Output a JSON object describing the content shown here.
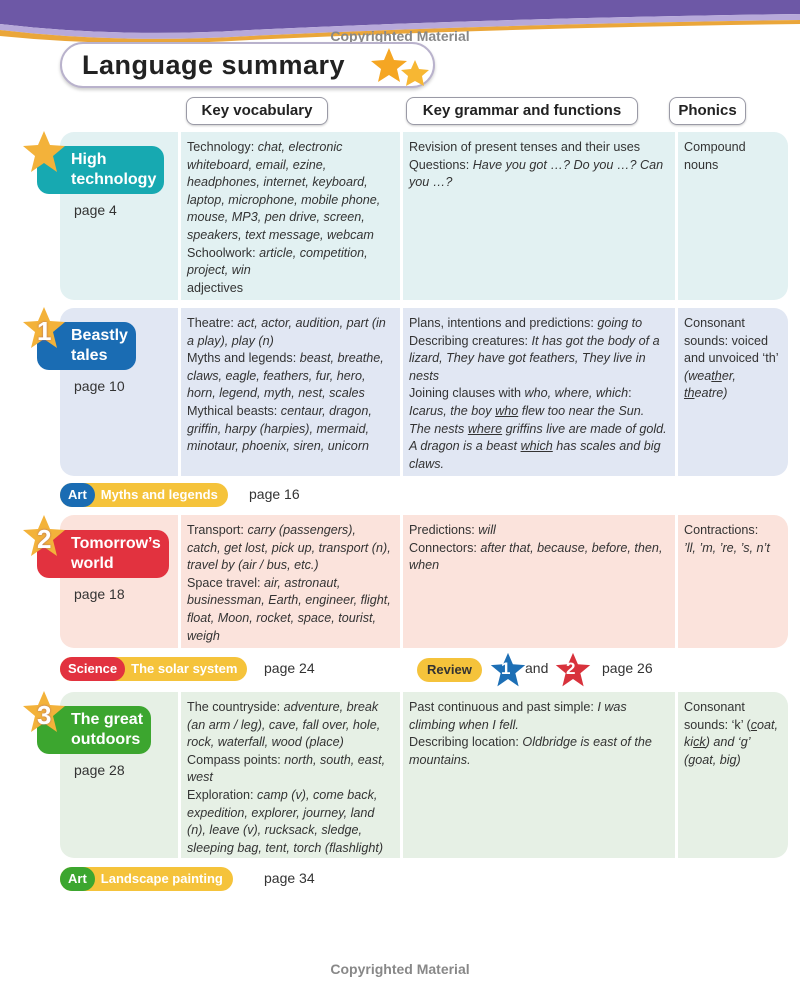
{
  "watermark": "Copyrighted Material",
  "title": "Language summary",
  "columns": {
    "vocab": "Key vocabulary",
    "grammar": "Key grammar and functions",
    "phonics": "Phonics"
  },
  "colors": {
    "teal": "#17a9b1",
    "blue": "#1a6cb3",
    "red": "#e2323f",
    "green": "#3ca62f",
    "gold": "#f5c33b"
  },
  "units": [
    {
      "number": "",
      "title_lines": [
        "High",
        "technology"
      ],
      "page": "page 4",
      "vocab": [
        [
          {
            "t": "Technology: "
          },
          {
            "t": "chat, electronic whiteboard, email, ezine, headphones, internet, keyboard, laptop, microphone, mobile phone, mouse, MP3, pen drive, screen, speakers, text message, webcam",
            "i": 1
          }
        ],
        [
          {
            "t": "Schoolwork: "
          },
          {
            "t": "article, competition, project, win",
            "i": 1
          }
        ],
        [
          {
            "t": "adjectives"
          }
        ]
      ],
      "grammar": [
        [
          {
            "t": "Revision of present tenses and their uses"
          }
        ],
        [
          {
            "t": "Questions: "
          },
          {
            "t": "Have you got …? Do you …? Can you …?",
            "i": 1
          }
        ]
      ],
      "phonics": [
        [
          {
            "t": "Compound nouns"
          }
        ]
      ]
    },
    {
      "number": "1",
      "title_lines": [
        "Beastly",
        "tales"
      ],
      "page": "page 10",
      "vocab": [
        [
          {
            "t": "Theatre: "
          },
          {
            "t": "act, actor, audition, part (in a play), play (n)",
            "i": 1
          }
        ],
        [
          {
            "t": "Myths and legends: "
          },
          {
            "t": "beast, breathe, claws, eagle, feathers, fur, hero, horn, legend, myth, nest, scales",
            "i": 1
          }
        ],
        [
          {
            "t": "Mythical beasts: "
          },
          {
            "t": "centaur, dragon, griffin, harpy (harpies), mermaid, minotaur, phoenix, siren, unicorn",
            "i": 1
          }
        ]
      ],
      "grammar": [
        [
          {
            "t": "Plans, intentions and predictions: "
          },
          {
            "t": "going to",
            "i": 1
          }
        ],
        [
          {
            "t": "Describing creatures: "
          },
          {
            "t": "It has got the body of a lizard, They have got feathers, They live in nests",
            "i": 1
          }
        ],
        [
          {
            "t": "Joining clauses with "
          },
          {
            "t": "who, where, which",
            "i": 1
          },
          {
            "t": ":"
          }
        ],
        [
          {
            "t": "Icarus, the boy ",
            "i": 1
          },
          {
            "t": "who",
            "i": 1,
            "u": 1
          },
          {
            "t": " flew too near the Sun.",
            "i": 1
          }
        ],
        [
          {
            "t": "The nests ",
            "i": 1
          },
          {
            "t": "where",
            "i": 1,
            "u": 1
          },
          {
            "t": " griffins live are made of gold.",
            "i": 1
          }
        ],
        [
          {
            "t": "A dragon is a beast ",
            "i": 1
          },
          {
            "t": "which",
            "i": 1,
            "u": 1
          },
          {
            "t": " has scales and big claws.",
            "i": 1
          }
        ]
      ],
      "phonics": [
        [
          {
            "t": "Consonant sounds: voiced and unvoiced ‘th’"
          }
        ],
        [
          {
            "t": "(wea",
            "i": 1
          },
          {
            "t": "th",
            "i": 1,
            "u": 1
          },
          {
            "t": "er, ",
            "i": 1
          },
          {
            "t": "th",
            "i": 1,
            "u": 1
          },
          {
            "t": "eatre)",
            "i": 1
          }
        ]
      ]
    },
    {
      "number": "2",
      "title_lines": [
        "Tomorrow’s",
        "world"
      ],
      "page": "page 18",
      "vocab": [
        [
          {
            "t": "Transport: "
          },
          {
            "t": "carry (passengers), catch, get lost, pick up, transport (n), travel by (air / bus, etc.)",
            "i": 1
          }
        ],
        [
          {
            "t": "Space travel: "
          },
          {
            "t": "air, astronaut, businessman, Earth, engineer, flight, float, Moon, rocket, space, tourist, weigh",
            "i": 1
          }
        ]
      ],
      "grammar": [
        [
          {
            "t": "Predictions: "
          },
          {
            "t": "will",
            "i": 1
          }
        ],
        [
          {
            "t": "Connectors: "
          },
          {
            "t": "after that, because, before, then, when",
            "i": 1
          }
        ]
      ],
      "phonics": [
        [
          {
            "t": "Contractions:"
          }
        ],
        [
          {
            "t": "’ll, ’m, ’re, ’s, n’t",
            "i": 1
          }
        ]
      ]
    },
    {
      "number": "3",
      "title_lines": [
        "The great",
        "outdoors"
      ],
      "page": "page 28",
      "vocab": [
        [
          {
            "t": "The countryside: "
          },
          {
            "t": "adventure, break (an arm / leg), cave, fall over, hole, rock, waterfall, wood (place)",
            "i": 1
          }
        ],
        [
          {
            "t": "Compass points: "
          },
          {
            "t": "north, south, east, west",
            "i": 1
          }
        ],
        [
          {
            "t": "Exploration: "
          },
          {
            "t": "camp (v), come back, expedition, explorer, journey, land (n), leave (v), rucksack, sledge, sleeping bag, tent, torch (flashlight)",
            "i": 1
          }
        ]
      ],
      "grammar": [
        [
          {
            "t": "Past continuous and past simple: "
          },
          {
            "t": "I was climbing when I fell.",
            "i": 1
          }
        ],
        [
          {
            "t": "Describing location: "
          },
          {
            "t": "Oldbridge is east of the mountains.",
            "i": 1
          }
        ]
      ],
      "phonics": [
        [
          {
            "t": "Consonant sounds: ‘k’ ("
          },
          {
            "t": "c",
            "i": 1,
            "u": 1
          },
          {
            "t": "oat, ki",
            "i": 1
          },
          {
            "t": "ck",
            "i": 1,
            "u": 1
          },
          {
            "t": ") and ‘g’ (",
            "i": 1
          },
          {
            "t": "g",
            "i": 1,
            "u": 1
          },
          {
            "t": "oat, bi",
            "i": 1
          },
          {
            "t": "g",
            "i": 1,
            "u": 1
          },
          {
            "t": ")",
            "i": 1
          }
        ]
      ]
    }
  ],
  "cross_curricular": [
    {
      "subject": "Art",
      "topic": "Myths and legends",
      "page": "page 16"
    },
    {
      "subject": "Science",
      "topic": "The solar system",
      "page": "page 24"
    },
    {
      "subject": "Art",
      "topic": "Landscape painting",
      "page": "page 34"
    }
  ],
  "review": {
    "label": "Review",
    "n1": "1",
    "and": "and",
    "n2": "2",
    "page": "page 26"
  }
}
